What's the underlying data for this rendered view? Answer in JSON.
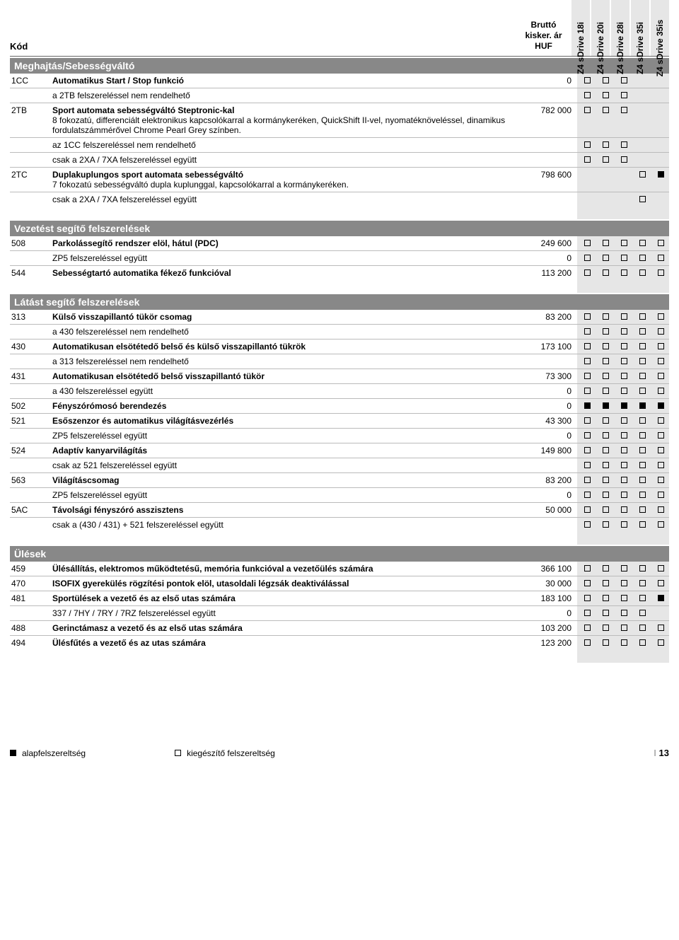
{
  "header": {
    "kod": "Kód",
    "price_l1": "Bruttó",
    "price_l2": "kisker. ár",
    "price_l3": "HUF",
    "models": [
      "Z4 sDrive 18i",
      "Z4 sDrive 20i",
      "Z4 sDrive 28i",
      "Z4 sDrive 35i",
      "Z4 sDrive 35is"
    ]
  },
  "sections": [
    {
      "title": "Meghajtás/Sebességváltó",
      "rows": [
        {
          "code": "1CC",
          "desc": "Automatikus Start / Stop funkció",
          "bold": true,
          "price": "0",
          "m": [
            "o",
            "o",
            "o",
            "",
            ""
          ],
          "line": true
        },
        {
          "code": "",
          "desc": "a 2TB felszereléssel nem rendelhető",
          "bold": false,
          "price": "",
          "m": [
            "o",
            "o",
            "o",
            "",
            ""
          ],
          "line": true
        },
        {
          "code": "2TB",
          "desc": "Sport automata sebességváltó Steptronic-kal",
          "sub": "8 fokozatú, differenciált elektronikus kapcsolókarral a kormánykeréken, QuickShift II-vel, nyomatéknöveléssel, dinamikus fordulatszámmérővel Chrome Pearl Grey színben.",
          "bold": true,
          "price": "782 000",
          "m": [
            "o",
            "o",
            "o",
            "",
            ""
          ],
          "line": true
        },
        {
          "code": "",
          "desc": "az 1CC felszereléssel nem rendelhető",
          "bold": false,
          "price": "",
          "m": [
            "o",
            "o",
            "o",
            "",
            ""
          ],
          "line": true
        },
        {
          "code": "",
          "desc": "csak a 2XA / 7XA felszereléssel együtt",
          "bold": false,
          "price": "",
          "m": [
            "o",
            "o",
            "o",
            "",
            ""
          ],
          "line": true
        },
        {
          "code": "2TC",
          "desc": "Duplakuplungos sport automata sebességváltó",
          "sub": "7 fokozatú sebességváltó dupla kuplunggal, kapcsolókarral a kormánykeréken.",
          "bold": true,
          "price": "798 600",
          "m": [
            "",
            "",
            "",
            "o",
            "f"
          ],
          "line": true
        },
        {
          "code": "",
          "desc": "csak a 2XA / 7XA felszereléssel együtt",
          "bold": false,
          "price": "",
          "m": [
            "",
            "",
            "",
            "o",
            ""
          ],
          "line": false
        }
      ]
    },
    {
      "title": "Vezetést segítő felszerelések",
      "rows": [
        {
          "code": "508",
          "desc": "Parkolássegítő rendszer elöl, hátul (PDC)",
          "bold": true,
          "price": "249 600",
          "m": [
            "o",
            "o",
            "o",
            "o",
            "o"
          ],
          "line": true
        },
        {
          "code": "",
          "desc": "ZP5 felszereléssel együtt",
          "bold": false,
          "price": "0",
          "m": [
            "o",
            "o",
            "o",
            "o",
            "o"
          ],
          "line": true
        },
        {
          "code": "544",
          "desc": "Sebességtartó automatika fékező funkcióval",
          "bold": true,
          "price": "113 200",
          "m": [
            "o",
            "o",
            "o",
            "o",
            "o"
          ],
          "line": false
        }
      ]
    },
    {
      "title": "Látást segítő felszerelések",
      "rows": [
        {
          "code": "313",
          "desc": "Külső visszapillantó tükör csomag",
          "bold": true,
          "price": "83 200",
          "m": [
            "o",
            "o",
            "o",
            "o",
            "o"
          ],
          "line": true
        },
        {
          "code": "",
          "desc": "a 430 felszereléssel nem rendelhető",
          "bold": false,
          "price": "",
          "m": [
            "o",
            "o",
            "o",
            "o",
            "o"
          ],
          "line": true
        },
        {
          "code": "430",
          "desc": "Automatikusan elsötétedő belső és külső visszapillantó tükrök",
          "bold": true,
          "price": "173 100",
          "m": [
            "o",
            "o",
            "o",
            "o",
            "o"
          ],
          "line": true
        },
        {
          "code": "",
          "desc": "a 313 felszereléssel nem rendelhető",
          "bold": false,
          "price": "",
          "m": [
            "o",
            "o",
            "o",
            "o",
            "o"
          ],
          "line": true
        },
        {
          "code": "431",
          "desc": "Automatikusan elsötétedő belső visszapillantó tükör",
          "bold": true,
          "price": "73 300",
          "m": [
            "o",
            "o",
            "o",
            "o",
            "o"
          ],
          "line": true
        },
        {
          "code": "",
          "desc": "a 430 felszereléssel együtt",
          "bold": false,
          "price": "0",
          "m": [
            "o",
            "o",
            "o",
            "o",
            "o"
          ],
          "line": true
        },
        {
          "code": "502",
          "desc": "Fényszórómosó berendezés",
          "bold": true,
          "price": "0",
          "m": [
            "f",
            "f",
            "f",
            "f",
            "f"
          ],
          "line": true
        },
        {
          "code": "521",
          "desc": "Esőszenzor és automatikus világításvezérlés",
          "bold": true,
          "price": "43 300",
          "m": [
            "o",
            "o",
            "o",
            "o",
            "o"
          ],
          "line": true
        },
        {
          "code": "",
          "desc": "ZP5 felszereléssel együtt",
          "bold": false,
          "price": "0",
          "m": [
            "o",
            "o",
            "o",
            "o",
            "o"
          ],
          "line": true
        },
        {
          "code": "524",
          "desc": "Adaptív kanyarvilágítás",
          "bold": true,
          "price": "149 800",
          "m": [
            "o",
            "o",
            "o",
            "o",
            "o"
          ],
          "line": true
        },
        {
          "code": "",
          "desc": "csak az 521 felszereléssel együtt",
          "bold": false,
          "price": "",
          "m": [
            "o",
            "o",
            "o",
            "o",
            "o"
          ],
          "line": true
        },
        {
          "code": "563",
          "desc": "Világításcsomag",
          "bold": true,
          "price": "83 200",
          "m": [
            "o",
            "o",
            "o",
            "o",
            "o"
          ],
          "line": true
        },
        {
          "code": "",
          "desc": "ZP5 felszereléssel együtt",
          "bold": false,
          "price": "0",
          "m": [
            "o",
            "o",
            "o",
            "o",
            "o"
          ],
          "line": true
        },
        {
          "code": "5AC",
          "desc": "Távolsági fényszóró asszisztens",
          "bold": true,
          "price": "50 000",
          "m": [
            "o",
            "o",
            "o",
            "o",
            "o"
          ],
          "line": true
        },
        {
          "code": "",
          "desc": "csak a (430 / 431) + 521 felszereléssel együtt",
          "bold": false,
          "price": "",
          "m": [
            "o",
            "o",
            "o",
            "o",
            "o"
          ],
          "line": false
        }
      ]
    },
    {
      "title": "Ülések",
      "rows": [
        {
          "code": "459",
          "desc": "Ülésállítás, elektromos működtetésű, memória funkcióval a vezetőülés számára",
          "bold": true,
          "price": "366 100",
          "m": [
            "o",
            "o",
            "o",
            "o",
            "o"
          ],
          "line": true
        },
        {
          "code": "470",
          "desc": "ISOFIX gyerekülés rögzítési pontok elöl, utasoldali légzsák deaktiválással",
          "bold": true,
          "price": "30 000",
          "m": [
            "o",
            "o",
            "o",
            "o",
            "o"
          ],
          "line": true
        },
        {
          "code": "481",
          "desc": "Sportülések a vezető és az első utas számára",
          "bold": true,
          "price": "183 100",
          "m": [
            "o",
            "o",
            "o",
            "o",
            "f"
          ],
          "line": true
        },
        {
          "code": "",
          "desc": "337 / 7HY / 7RY / 7RZ felszereléssel együtt",
          "bold": false,
          "price": "0",
          "m": [
            "o",
            "o",
            "o",
            "o",
            ""
          ],
          "line": true
        },
        {
          "code": "488",
          "desc": "Gerinctámasz a vezető és az első utas számára",
          "bold": true,
          "price": "103 200",
          "m": [
            "o",
            "o",
            "o",
            "o",
            "o"
          ],
          "line": true
        },
        {
          "code": "494",
          "desc": "Ülésfűtés a vezető és az utas számára",
          "bold": true,
          "price": "123 200",
          "m": [
            "o",
            "o",
            "o",
            "o",
            "o"
          ],
          "line": false
        }
      ]
    }
  ],
  "legend": {
    "std": "alapfelszereltség",
    "opt": "kiegészítő felszereltség",
    "page": "13"
  }
}
